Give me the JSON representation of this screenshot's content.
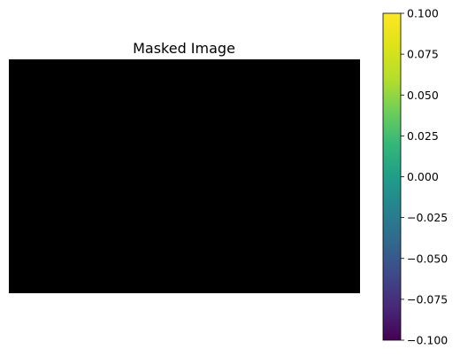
{
  "chart_data": {
    "type": "heatmap",
    "title": "Masked Image",
    "image_fill": "#000000",
    "axes_visible": false,
    "colorbar": {
      "colormap": "viridis",
      "range": [
        -0.1,
        0.1
      ],
      "ticks": [
        0.1,
        0.075,
        0.05,
        0.025,
        0.0,
        -0.025,
        -0.05,
        -0.075,
        -0.1
      ],
      "tick_labels": [
        "0.100",
        "0.075",
        "0.050",
        "0.025",
        "0.000",
        "−0.025",
        "−0.050",
        "−0.075",
        "−0.100"
      ],
      "placement": "right"
    }
  }
}
